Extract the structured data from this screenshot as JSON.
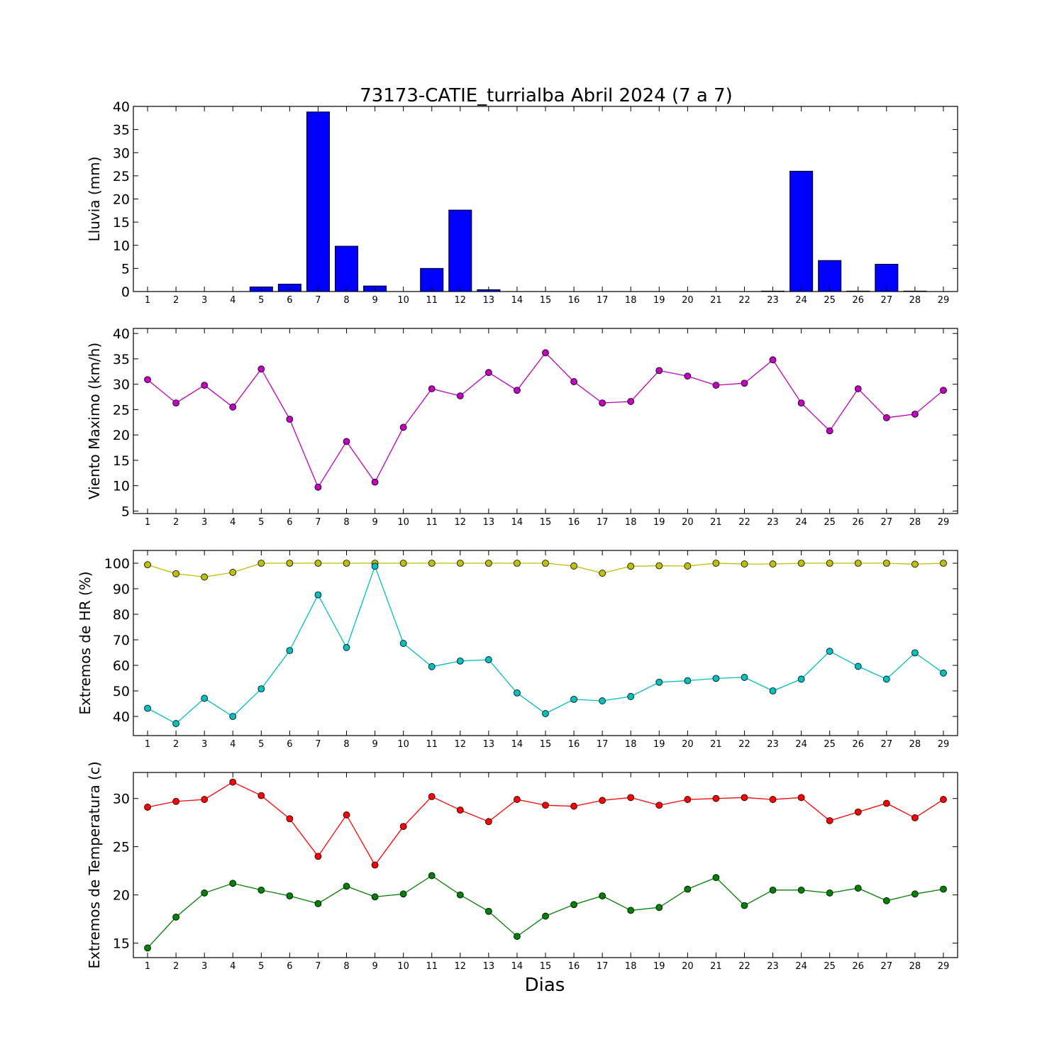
{
  "figure": {
    "title": "73173-CATIE_turrialba Abril 2024  (7 a 7)",
    "xlabel": "Dias"
  },
  "chart_data": [
    {
      "type": "bar",
      "ylabel": "Lluvia (mm)",
      "ylim": [
        0,
        40
      ],
      "yticks": [
        0,
        5,
        10,
        15,
        20,
        25,
        30,
        35,
        40
      ],
      "xlim": [
        0.5,
        29.5
      ],
      "categories": [
        1,
        2,
        3,
        4,
        5,
        6,
        7,
        8,
        9,
        10,
        11,
        12,
        13,
        14,
        15,
        16,
        17,
        18,
        19,
        20,
        21,
        22,
        23,
        24,
        25,
        26,
        27,
        28,
        29
      ],
      "series": [
        {
          "color": "#0000ff",
          "values": [
            0,
            0,
            0,
            0,
            1.0,
            1.6,
            38.8,
            9.8,
            1.2,
            0,
            5.0,
            17.6,
            0.4,
            0,
            0,
            0,
            0,
            0,
            0,
            0,
            0,
            0,
            0.1,
            26.0,
            6.7,
            0.1,
            5.9,
            0.1,
            0
          ]
        }
      ]
    },
    {
      "type": "line",
      "ylabel": "Viento Maximo (km/h)",
      "ylim": [
        4.5,
        41
      ],
      "yticks": [
        5,
        10,
        15,
        20,
        25,
        30,
        35,
        40
      ],
      "xlim": [
        0.5,
        29.5
      ],
      "x": [
        1,
        2,
        3,
        4,
        5,
        6,
        7,
        8,
        9,
        10,
        11,
        12,
        13,
        14,
        15,
        16,
        17,
        18,
        19,
        20,
        21,
        22,
        23,
        24,
        25,
        26,
        27,
        28,
        29
      ],
      "series": [
        {
          "color": "#bf00bf",
          "values": [
            30.9,
            26.3,
            29.8,
            25.5,
            33.0,
            23.1,
            9.7,
            18.7,
            10.7,
            21.5,
            29.1,
            27.7,
            32.3,
            28.8,
            36.2,
            30.5,
            26.3,
            26.6,
            32.7,
            31.6,
            29.8,
            30.2,
            34.8,
            26.3,
            20.8,
            29.1,
            23.4,
            24.1,
            28.8
          ]
        }
      ]
    },
    {
      "type": "line",
      "ylabel": "Extremos de HR (%)",
      "ylim": [
        32.5,
        105
      ],
      "yticks": [
        40,
        50,
        60,
        70,
        80,
        90,
        100
      ],
      "xlim": [
        0.5,
        29.5
      ],
      "x": [
        1,
        2,
        3,
        4,
        5,
        6,
        7,
        8,
        9,
        10,
        11,
        12,
        13,
        14,
        15,
        16,
        17,
        18,
        19,
        20,
        21,
        22,
        23,
        24,
        25,
        26,
        27,
        28,
        29
      ],
      "series": [
        {
          "color": "#bfbf00",
          "values": [
            99.4,
            95.9,
            94.6,
            96.4,
            100,
            100,
            100,
            100,
            100,
            100,
            100,
            100,
            100,
            100,
            100,
            98.9,
            96.1,
            98.8,
            99.0,
            98.9,
            100,
            99.7,
            99.7,
            100,
            100,
            100,
            100,
            99.6,
            100
          ]
        },
        {
          "color": "#00bfbf",
          "values": [
            43.2,
            37.2,
            47.1,
            40.0,
            50.8,
            65.8,
            87.6,
            67.0,
            98.8,
            68.6,
            59.5,
            61.7,
            62.2,
            49.2,
            41.1,
            46.7,
            46.1,
            47.8,
            53.4,
            54.0,
            54.9,
            55.3,
            50.0,
            54.6,
            65.5,
            59.6,
            54.6,
            64.9,
            57.0
          ]
        }
      ]
    },
    {
      "type": "line",
      "ylabel": "Extremos de Temperatura (c)",
      "ylim": [
        13.5,
        32.7
      ],
      "yticks": [
        15,
        20,
        25,
        30
      ],
      "xlim": [
        0.5,
        29.5
      ],
      "x": [
        1,
        2,
        3,
        4,
        5,
        6,
        7,
        8,
        9,
        10,
        11,
        12,
        13,
        14,
        15,
        16,
        17,
        18,
        19,
        20,
        21,
        22,
        23,
        24,
        25,
        26,
        27,
        28,
        29
      ],
      "series": [
        {
          "color": "#ff0000",
          "values": [
            29.1,
            29.7,
            29.9,
            31.7,
            30.3,
            27.9,
            24.0,
            28.3,
            23.1,
            27.1,
            30.2,
            28.8,
            27.6,
            29.9,
            29.3,
            29.2,
            29.8,
            30.1,
            29.3,
            29.9,
            30.0,
            30.1,
            29.9,
            30.1,
            27.7,
            28.6,
            29.5,
            28.0,
            29.9
          ]
        },
        {
          "color": "#008000",
          "values": [
            14.5,
            17.7,
            20.2,
            21.2,
            20.5,
            19.9,
            19.1,
            20.9,
            19.8,
            20.1,
            22.0,
            20.0,
            18.3,
            15.7,
            17.8,
            19.0,
            19.9,
            18.4,
            18.7,
            20.6,
            21.8,
            18.9,
            20.5,
            20.5,
            20.2,
            20.7,
            19.4,
            20.1,
            20.6
          ]
        }
      ]
    }
  ]
}
